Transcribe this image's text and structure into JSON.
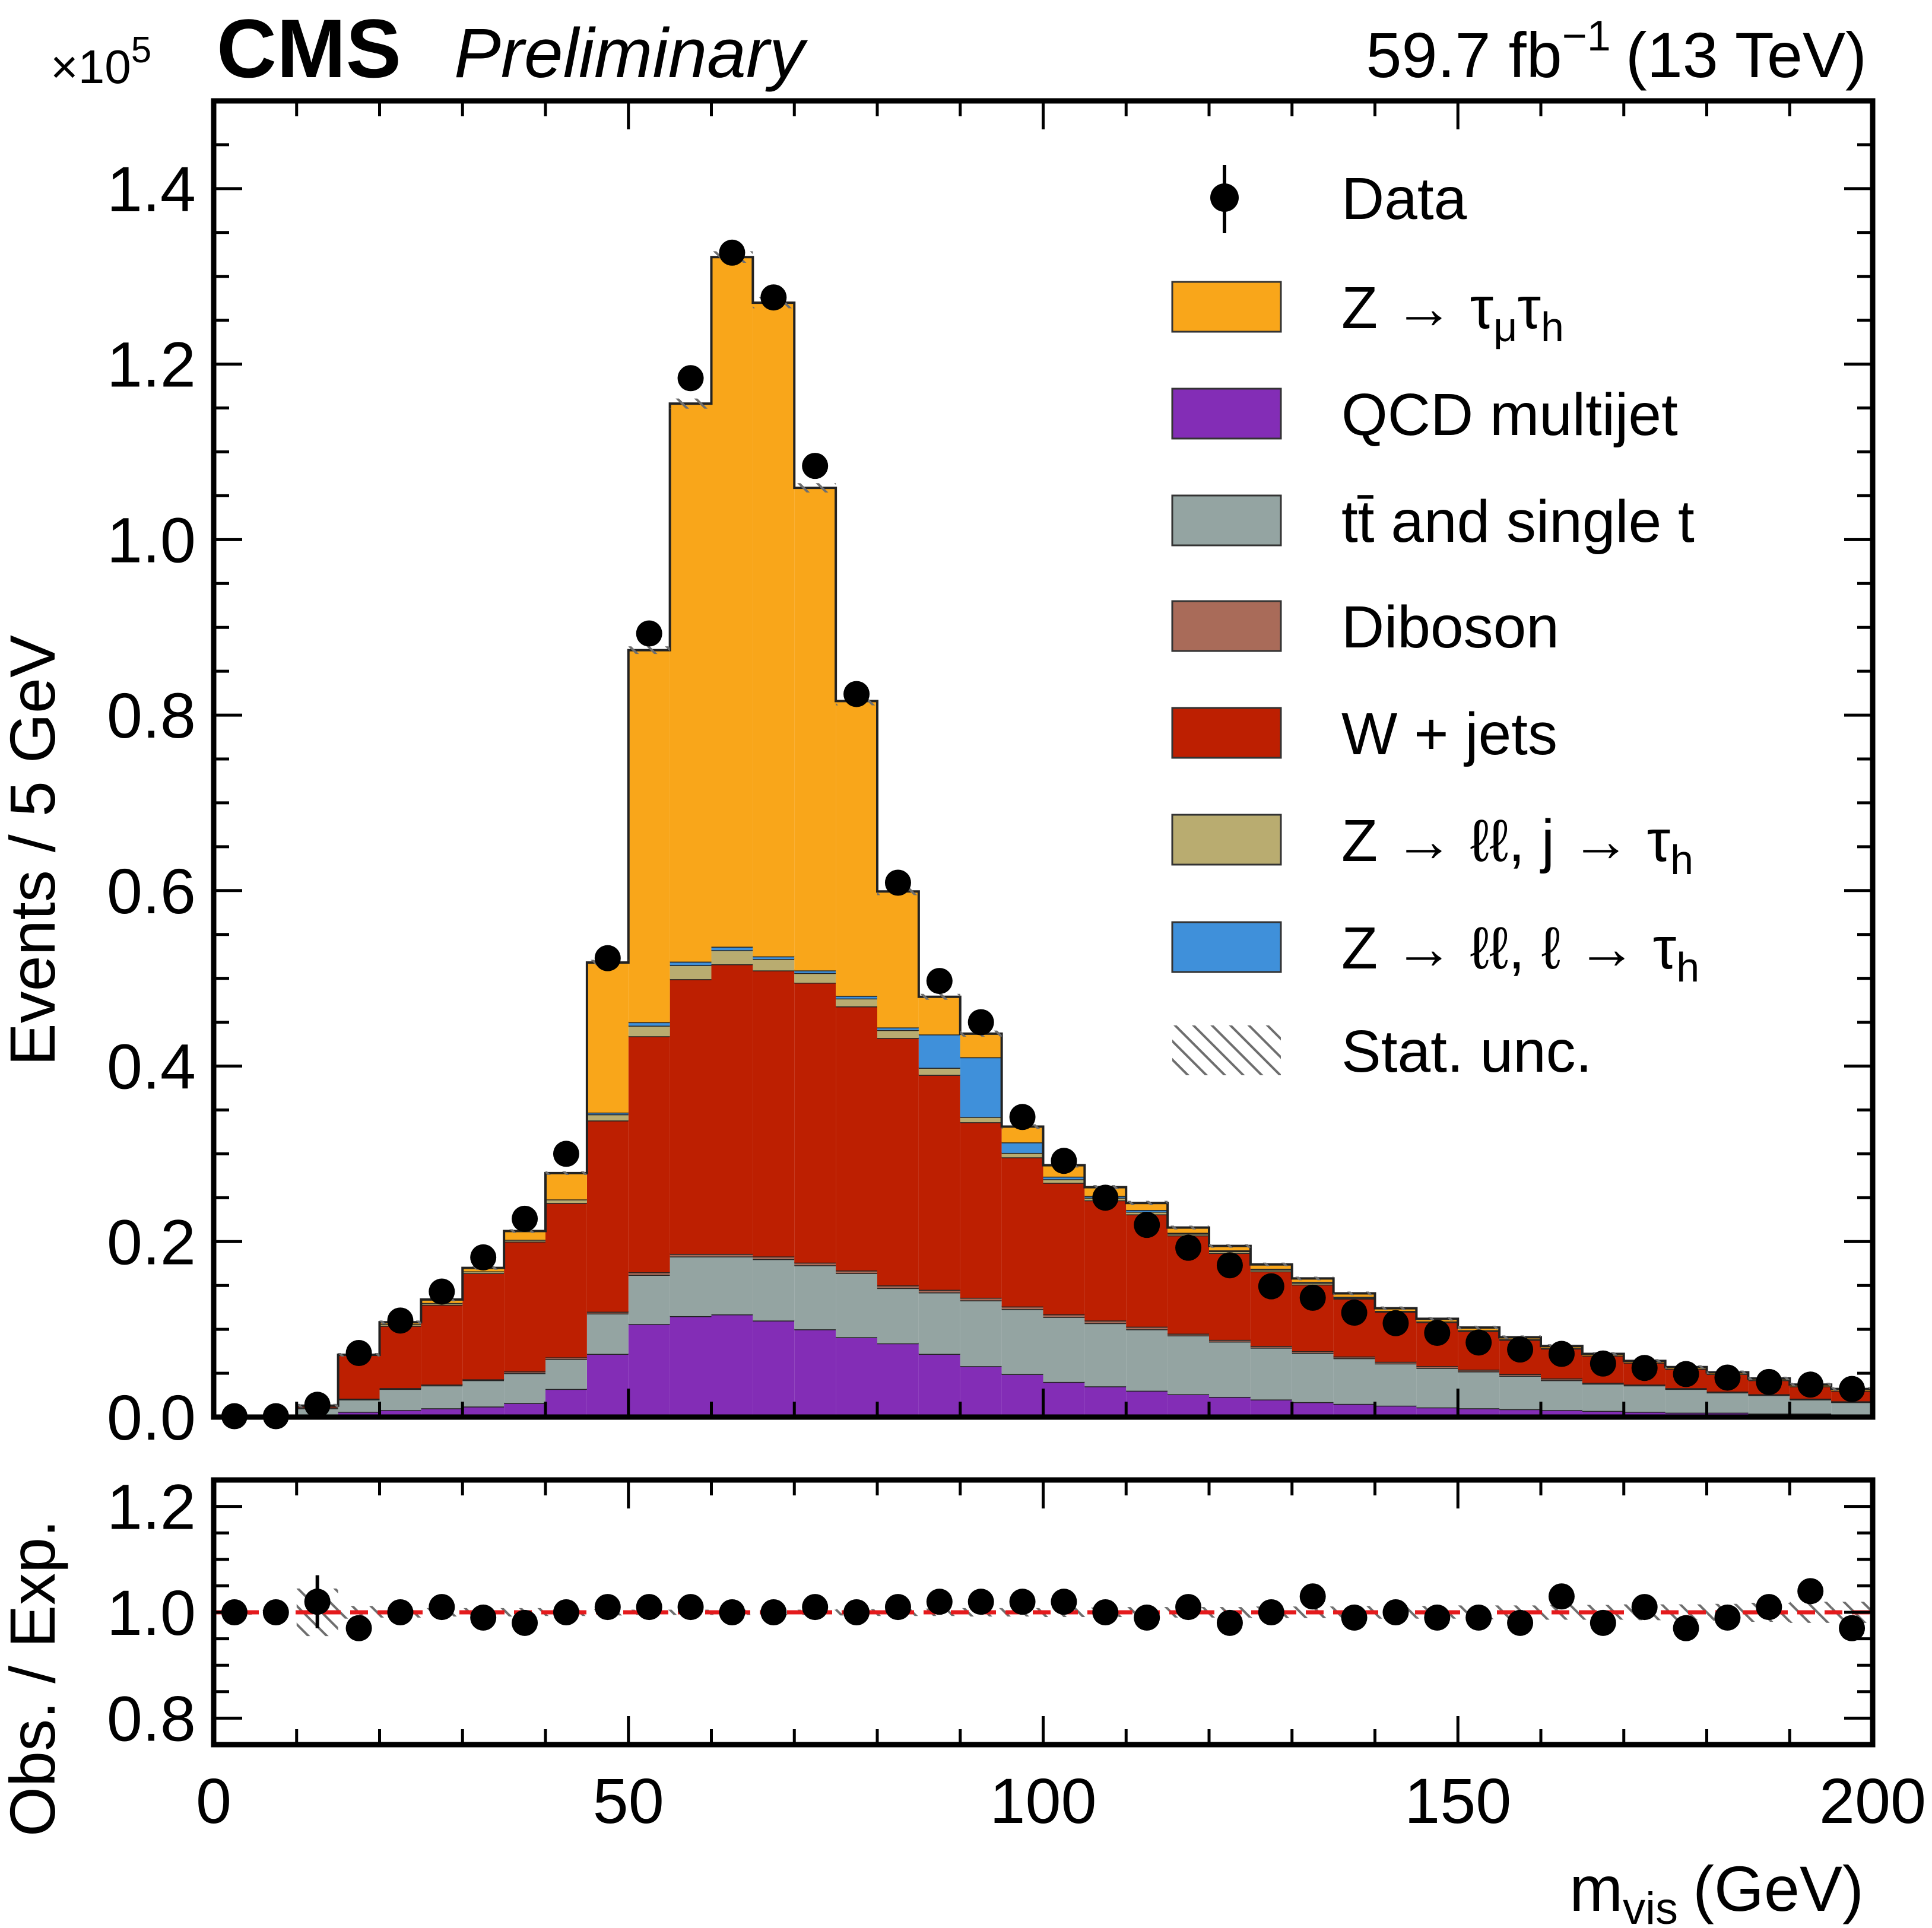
{
  "header": {
    "experiment": "CMS",
    "status": "Preliminary",
    "lumi_value": "59.7 fb",
    "lumi_exp": "−1",
    "energy": "(13 TeV)",
    "exponent_base": "×10",
    "exponent_power": "5"
  },
  "chart_data": [
    {
      "type": "bar",
      "subtype": "stacked-histogram",
      "xlabel": "m",
      "xlabel_sub": "vis",
      "xlabel_unit": "(GeV)",
      "ylabel": "Events / 5 GeV",
      "y_scale_factor": 100000,
      "xlim": [
        0,
        200
      ],
      "ylim": [
        0,
        1.5
      ],
      "xticks": [
        0,
        50,
        100,
        150,
        200
      ],
      "xtick_labels": [
        "0",
        "50",
        "100",
        "150",
        "200"
      ],
      "yticks": [
        0.0,
        0.2,
        0.4,
        0.6,
        0.8,
        1.0,
        1.2,
        1.4
      ],
      "ytick_labels": [
        "0.0",
        "0.2",
        "0.4",
        "0.6",
        "0.8",
        "1.0",
        "1.2",
        "1.4"
      ],
      "bin_width": 5,
      "bin_centers": [
        2.5,
        7.5,
        12.5,
        17.5,
        22.5,
        27.5,
        32.5,
        37.5,
        42.5,
        47.5,
        52.5,
        57.5,
        62.5,
        67.5,
        72.5,
        77.5,
        82.5,
        87.5,
        92.5,
        97.5,
        102.5,
        107.5,
        112.5,
        117.5,
        122.5,
        127.5,
        132.5,
        137.5,
        142.5,
        147.5,
        152.5,
        157.5,
        162.5,
        167.5,
        172.5,
        177.5,
        182.5,
        187.5,
        192.5,
        197.5
      ],
      "legend_position": "top-right",
      "legend": [
        {
          "label": "Data",
          "marker": "point-with-error"
        },
        {
          "label_main": "Z  → τ",
          "label_sub1": "μ",
          "label_mid": "τ",
          "label_sub2": "h",
          "color": "#f9a61a"
        },
        {
          "label_main": "QCD multijet",
          "color": "#832db6"
        },
        {
          "label_main": "tt̄ and single t",
          "color": "#94a4a2"
        },
        {
          "label_main": "Diboson",
          "color": "#a96b59"
        },
        {
          "label_main": "W  +  jets",
          "color": "#bd1f01"
        },
        {
          "label_main": "Z → ℓℓ, j → τ",
          "label_sub2": "h",
          "color": "#b9ac70"
        },
        {
          "label_main": "Z  → ℓℓ, ℓ → τ",
          "label_sub2": "h",
          "color": "#3f90da"
        },
        {
          "label_main": "Stat.  unc.",
          "marker": "hatch"
        }
      ],
      "series": [
        {
          "key": "qcd",
          "color": "#832db6",
          "values": [
            0,
            0,
            0.002,
            0.006,
            0.008,
            0.01,
            0.012,
            0.016,
            0.032,
            0.072,
            0.106,
            0.115,
            0.117,
            0.11,
            0.1,
            0.091,
            0.084,
            0.072,
            0.058,
            0.049,
            0.04,
            0.035,
            0.03,
            0.026,
            0.023,
            0.02,
            0.017,
            0.015,
            0.013,
            0.011,
            0.01,
            0.009,
            0.008,
            0.007,
            0.006,
            0.005,
            0.005,
            0.004,
            0.004,
            0.003
          ]
        },
        {
          "key": "ttbar",
          "color": "#94a4a2",
          "values": [
            0,
            0,
            0.008,
            0.014,
            0.024,
            0.026,
            0.03,
            0.034,
            0.034,
            0.046,
            0.056,
            0.068,
            0.066,
            0.07,
            0.073,
            0.073,
            0.063,
            0.07,
            0.075,
            0.074,
            0.074,
            0.072,
            0.07,
            0.067,
            0.063,
            0.059,
            0.056,
            0.052,
            0.048,
            0.045,
            0.042,
            0.038,
            0.034,
            0.031,
            0.03,
            0.027,
            0.023,
            0.021,
            0.016,
            0.014
          ]
        },
        {
          "key": "diboson",
          "color": "#a96b59",
          "values": [
            0,
            0,
            0.001,
            0.001,
            0.001,
            0.001,
            0.001,
            0.002,
            0.002,
            0.002,
            0.003,
            0.003,
            0.003,
            0.003,
            0.003,
            0.003,
            0.003,
            0.003,
            0.003,
            0.003,
            0.003,
            0.003,
            0.003,
            0.002,
            0.002,
            0.002,
            0.002,
            0.002,
            0.002,
            0.002,
            0.002,
            0.002,
            0.002,
            0.001,
            0.001,
            0.001,
            0.001,
            0.001,
            0.001,
            0.001
          ]
        },
        {
          "key": "wjets",
          "color": "#bd1f01",
          "values": [
            0,
            0,
            0.002,
            0.05,
            0.071,
            0.091,
            0.121,
            0.148,
            0.176,
            0.218,
            0.269,
            0.313,
            0.33,
            0.326,
            0.319,
            0.301,
            0.282,
            0.245,
            0.2,
            0.17,
            0.15,
            0.137,
            0.128,
            0.112,
            0.099,
            0.085,
            0.076,
            0.066,
            0.057,
            0.05,
            0.044,
            0.039,
            0.034,
            0.031,
            0.025,
            0.022,
            0.02,
            0.016,
            0.014,
            0.012
          ]
        },
        {
          "key": "zll_jtau",
          "color": "#b9ac70",
          "values": [
            0,
            0,
            0,
            0,
            0.002,
            0.002,
            0.002,
            0.002,
            0.004,
            0.007,
            0.012,
            0.016,
            0.016,
            0.013,
            0.011,
            0.009,
            0.009,
            0.008,
            0.006,
            0.005,
            0.004,
            0.003,
            0.003,
            0.002,
            0.002,
            0.002,
            0.002,
            0.001,
            0.001,
            0.001,
            0.001,
            0.001,
            0.001,
            0,
            0,
            0,
            0,
            0,
            0,
            0
          ]
        },
        {
          "key": "zll_ltau",
          "color": "#3f90da",
          "values": [
            0,
            0,
            0,
            0,
            0,
            0,
            0,
            0,
            0,
            0.002,
            0.004,
            0.004,
            0.004,
            0.003,
            0.003,
            0.003,
            0.003,
            0.038,
            0.068,
            0.012,
            0.003,
            0.002,
            0.002,
            0.001,
            0.001,
            0.001,
            0.001,
            0.001,
            0,
            0,
            0,
            0,
            0,
            0,
            0,
            0,
            0,
            0,
            0,
            0
          ]
        },
        {
          "key": "ztautau",
          "color": "#f9a61a",
          "values": [
            0,
            0,
            0,
            0,
            0.002,
            0.004,
            0.004,
            0.01,
            0.03,
            0.171,
            0.424,
            0.636,
            0.786,
            0.745,
            0.55,
            0.336,
            0.155,
            0.043,
            0.027,
            0.018,
            0.013,
            0.01,
            0.008,
            0.006,
            0.005,
            0.005,
            0.004,
            0.004,
            0.003,
            0.003,
            0.003,
            0.002,
            0.002,
            0.002,
            0.002,
            0.002,
            0.002,
            0.002,
            0.002,
            0.002
          ]
        }
      ],
      "data_values": [
        0.001,
        0.001,
        0.014,
        0.073,
        0.11,
        0.143,
        0.182,
        0.226,
        0.3,
        0.523,
        0.893,
        1.184,
        1.327,
        1.276,
        1.084,
        0.824,
        0.609,
        0.497,
        0.45,
        0.342,
        0.292,
        0.25,
        0.219,
        0.193,
        0.173,
        0.149,
        0.136,
        0.119,
        0.107,
        0.096,
        0.085,
        0.077,
        0.072,
        0.061,
        0.056,
        0.049,
        0.045,
        0.04,
        0.037,
        0.032
      ],
      "data_errors": [
        0,
        0,
        0.001,
        0.002,
        0.002,
        0.002,
        0.002,
        0.002,
        0.003,
        0.004,
        0.005,
        0.006,
        0.006,
        0.006,
        0.005,
        0.005,
        0.004,
        0.004,
        0.004,
        0.003,
        0.003,
        0.003,
        0.003,
        0.003,
        0.002,
        0.002,
        0.002,
        0.002,
        0.002,
        0.002,
        0.002,
        0.002,
        0.002,
        0.002,
        0.002,
        0.002,
        0.002,
        0.002,
        0.002,
        0.002
      ]
    },
    {
      "type": "scatter",
      "subtype": "ratio-panel",
      "ylabel": "Obs. / Exp.",
      "xlim": [
        0,
        200
      ],
      "ylim": [
        0.75,
        1.25
      ],
      "yticks": [
        0.8,
        1.0,
        1.2
      ],
      "ytick_labels": [
        "0.8",
        "1.0",
        "1.2"
      ],
      "reference_line": {
        "value": 1.0,
        "color": "#e41a1c",
        "style": "dashed"
      },
      "bin_centers": [
        2.5,
        7.5,
        12.5,
        17.5,
        22.5,
        27.5,
        32.5,
        37.5,
        42.5,
        47.5,
        52.5,
        57.5,
        62.5,
        67.5,
        72.5,
        77.5,
        82.5,
        87.5,
        92.5,
        97.5,
        102.5,
        107.5,
        112.5,
        117.5,
        122.5,
        127.5,
        132.5,
        137.5,
        142.5,
        147.5,
        152.5,
        157.5,
        162.5,
        167.5,
        172.5,
        177.5,
        182.5,
        187.5,
        192.5,
        197.5
      ],
      "ratio": [
        1.0,
        1.0,
        1.02,
        0.97,
        1.0,
        1.01,
        0.99,
        0.98,
        1.0,
        1.01,
        1.01,
        1.01,
        1.0,
        1.0,
        1.01,
        1.0,
        1.01,
        1.02,
        1.02,
        1.02,
        1.02,
        1.0,
        0.99,
        1.01,
        0.98,
        1.0,
        1.03,
        0.99,
        1.0,
        0.99,
        0.99,
        0.98,
        1.03,
        0.98,
        1.01,
        0.97,
        0.99,
        1.01,
        1.04,
        0.97
      ],
      "ratio_errors": [
        0,
        0,
        0.05,
        0.01,
        0.005,
        0.005,
        0.005,
        0.005,
        0.005,
        0.005,
        0.005,
        0.005,
        0.005,
        0.005,
        0.005,
        0.005,
        0.005,
        0.005,
        0.005,
        0.005,
        0.005,
        0.005,
        0.005,
        0.005,
        0.005,
        0.005,
        0.005,
        0.005,
        0.005,
        0.005,
        0.005,
        0.005,
        0.012,
        0.01,
        0.012,
        0.01,
        0.01,
        0.015,
        0.02,
        0.01
      ],
      "stat_unc": [
        0.003,
        0.003,
        0.045,
        0.012,
        0.01,
        0.008,
        0.008,
        0.008,
        0.007,
        0.006,
        0.005,
        0.005,
        0.005,
        0.005,
        0.005,
        0.006,
        0.007,
        0.007,
        0.008,
        0.008,
        0.009,
        0.009,
        0.01,
        0.01,
        0.01,
        0.011,
        0.011,
        0.012,
        0.012,
        0.012,
        0.013,
        0.013,
        0.014,
        0.014,
        0.015,
        0.015,
        0.016,
        0.018,
        0.02,
        0.02
      ]
    }
  ]
}
